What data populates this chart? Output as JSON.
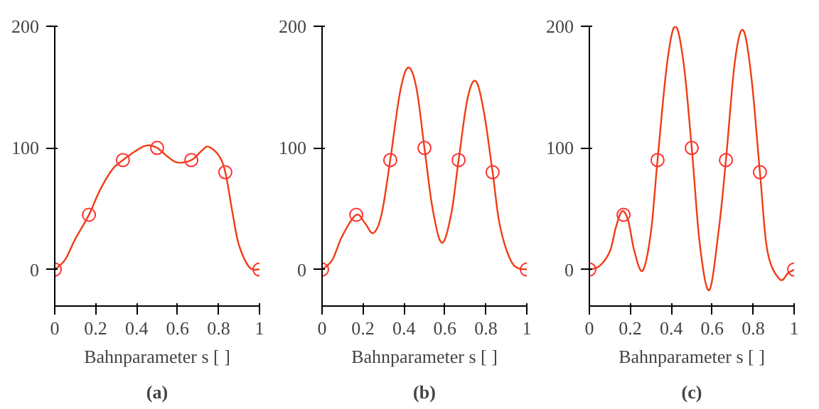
{
  "chart_data": [
    {
      "type": "line",
      "title": "(a)",
      "xlabel": "Bahnparameter s [ ]",
      "xlim": [
        0,
        1
      ],
      "ylim": [
        -30,
        200
      ],
      "xticks": [
        0,
        0.2,
        0.4,
        0.6,
        0.8,
        1
      ],
      "yticks": [
        0,
        100,
        200
      ],
      "grid": false,
      "series": [
        {
          "color": "#f03c14",
          "marker": "none",
          "x": [
            0,
            0.05,
            0.1,
            0.167,
            0.22,
            0.28,
            0.333,
            0.4,
            0.45,
            0.5,
            0.55,
            0.6,
            0.667,
            0.72,
            0.75,
            0.8,
            0.833,
            0.87,
            0.9,
            0.95,
            1
          ],
          "values": [
            0,
            8,
            25,
            45,
            65,
            82,
            90,
            98,
            102,
            100,
            93,
            88,
            90,
            98,
            101,
            94,
            80,
            45,
            20,
            2,
            0
          ]
        },
        {
          "type": "scatter",
          "color": "#ff3030",
          "marker": "circle",
          "x": [
            0,
            0.167,
            0.333,
            0.5,
            0.667,
            0.833,
            1
          ],
          "values": [
            0,
            45,
            90,
            100,
            90,
            80,
            0
          ]
        }
      ]
    },
    {
      "type": "line",
      "title": "(b)",
      "xlabel": "Bahnparameter s [ ]",
      "xlim": [
        0,
        1
      ],
      "ylim": [
        -30,
        200
      ],
      "xticks": [
        0,
        0.2,
        0.4,
        0.6,
        0.8,
        1
      ],
      "yticks": [
        0,
        100,
        200
      ],
      "grid": false,
      "series": [
        {
          "color": "#f03c14",
          "marker": "none",
          "x": [
            0,
            0.05,
            0.1,
            0.167,
            0.21,
            0.25,
            0.29,
            0.333,
            0.38,
            0.42,
            0.46,
            0.5,
            0.54,
            0.585,
            0.63,
            0.667,
            0.71,
            0.75,
            0.79,
            0.833,
            0.87,
            0.93,
            1
          ],
          "values": [
            0,
            8,
            28,
            45,
            38,
            30,
            45,
            90,
            145,
            166,
            150,
            100,
            50,
            22,
            45,
            90,
            140,
            155,
            130,
            80,
            35,
            5,
            0
          ]
        },
        {
          "type": "scatter",
          "color": "#ff3030",
          "marker": "circle",
          "x": [
            0,
            0.167,
            0.333,
            0.5,
            0.667,
            0.833,
            1
          ],
          "values": [
            0,
            45,
            90,
            100,
            90,
            80,
            0
          ]
        }
      ]
    },
    {
      "type": "line",
      "title": "(c)",
      "xlabel": "Bahnparameter s [ ]",
      "xlim": [
        0,
        1
      ],
      "ylim": [
        -30,
        200
      ],
      "xticks": [
        0,
        0.2,
        0.4,
        0.6,
        0.8,
        1
      ],
      "yticks": [
        0,
        100,
        200
      ],
      "grid": false,
      "series": [
        {
          "color": "#f03c14",
          "marker": "none",
          "x": [
            0,
            0.05,
            0.1,
            0.13,
            0.16,
            0.19,
            0.22,
            0.26,
            0.3,
            0.333,
            0.38,
            0.42,
            0.46,
            0.5,
            0.54,
            0.585,
            0.63,
            0.667,
            0.71,
            0.75,
            0.79,
            0.833,
            0.87,
            0.93,
            0.97,
            1
          ],
          "values": [
            0,
            3,
            15,
            35,
            48,
            40,
            15,
            -1,
            30,
            90,
            170,
            200,
            170,
            100,
            20,
            -17,
            30,
            90,
            170,
            197,
            160,
            80,
            15,
            -8,
            -3,
            0
          ]
        },
        {
          "type": "scatter",
          "color": "#ff3030",
          "marker": "circle",
          "x": [
            0,
            0.167,
            0.333,
            0.5,
            0.667,
            0.833,
            1
          ],
          "values": [
            0,
            45,
            90,
            100,
            90,
            80,
            0
          ]
        }
      ]
    }
  ]
}
